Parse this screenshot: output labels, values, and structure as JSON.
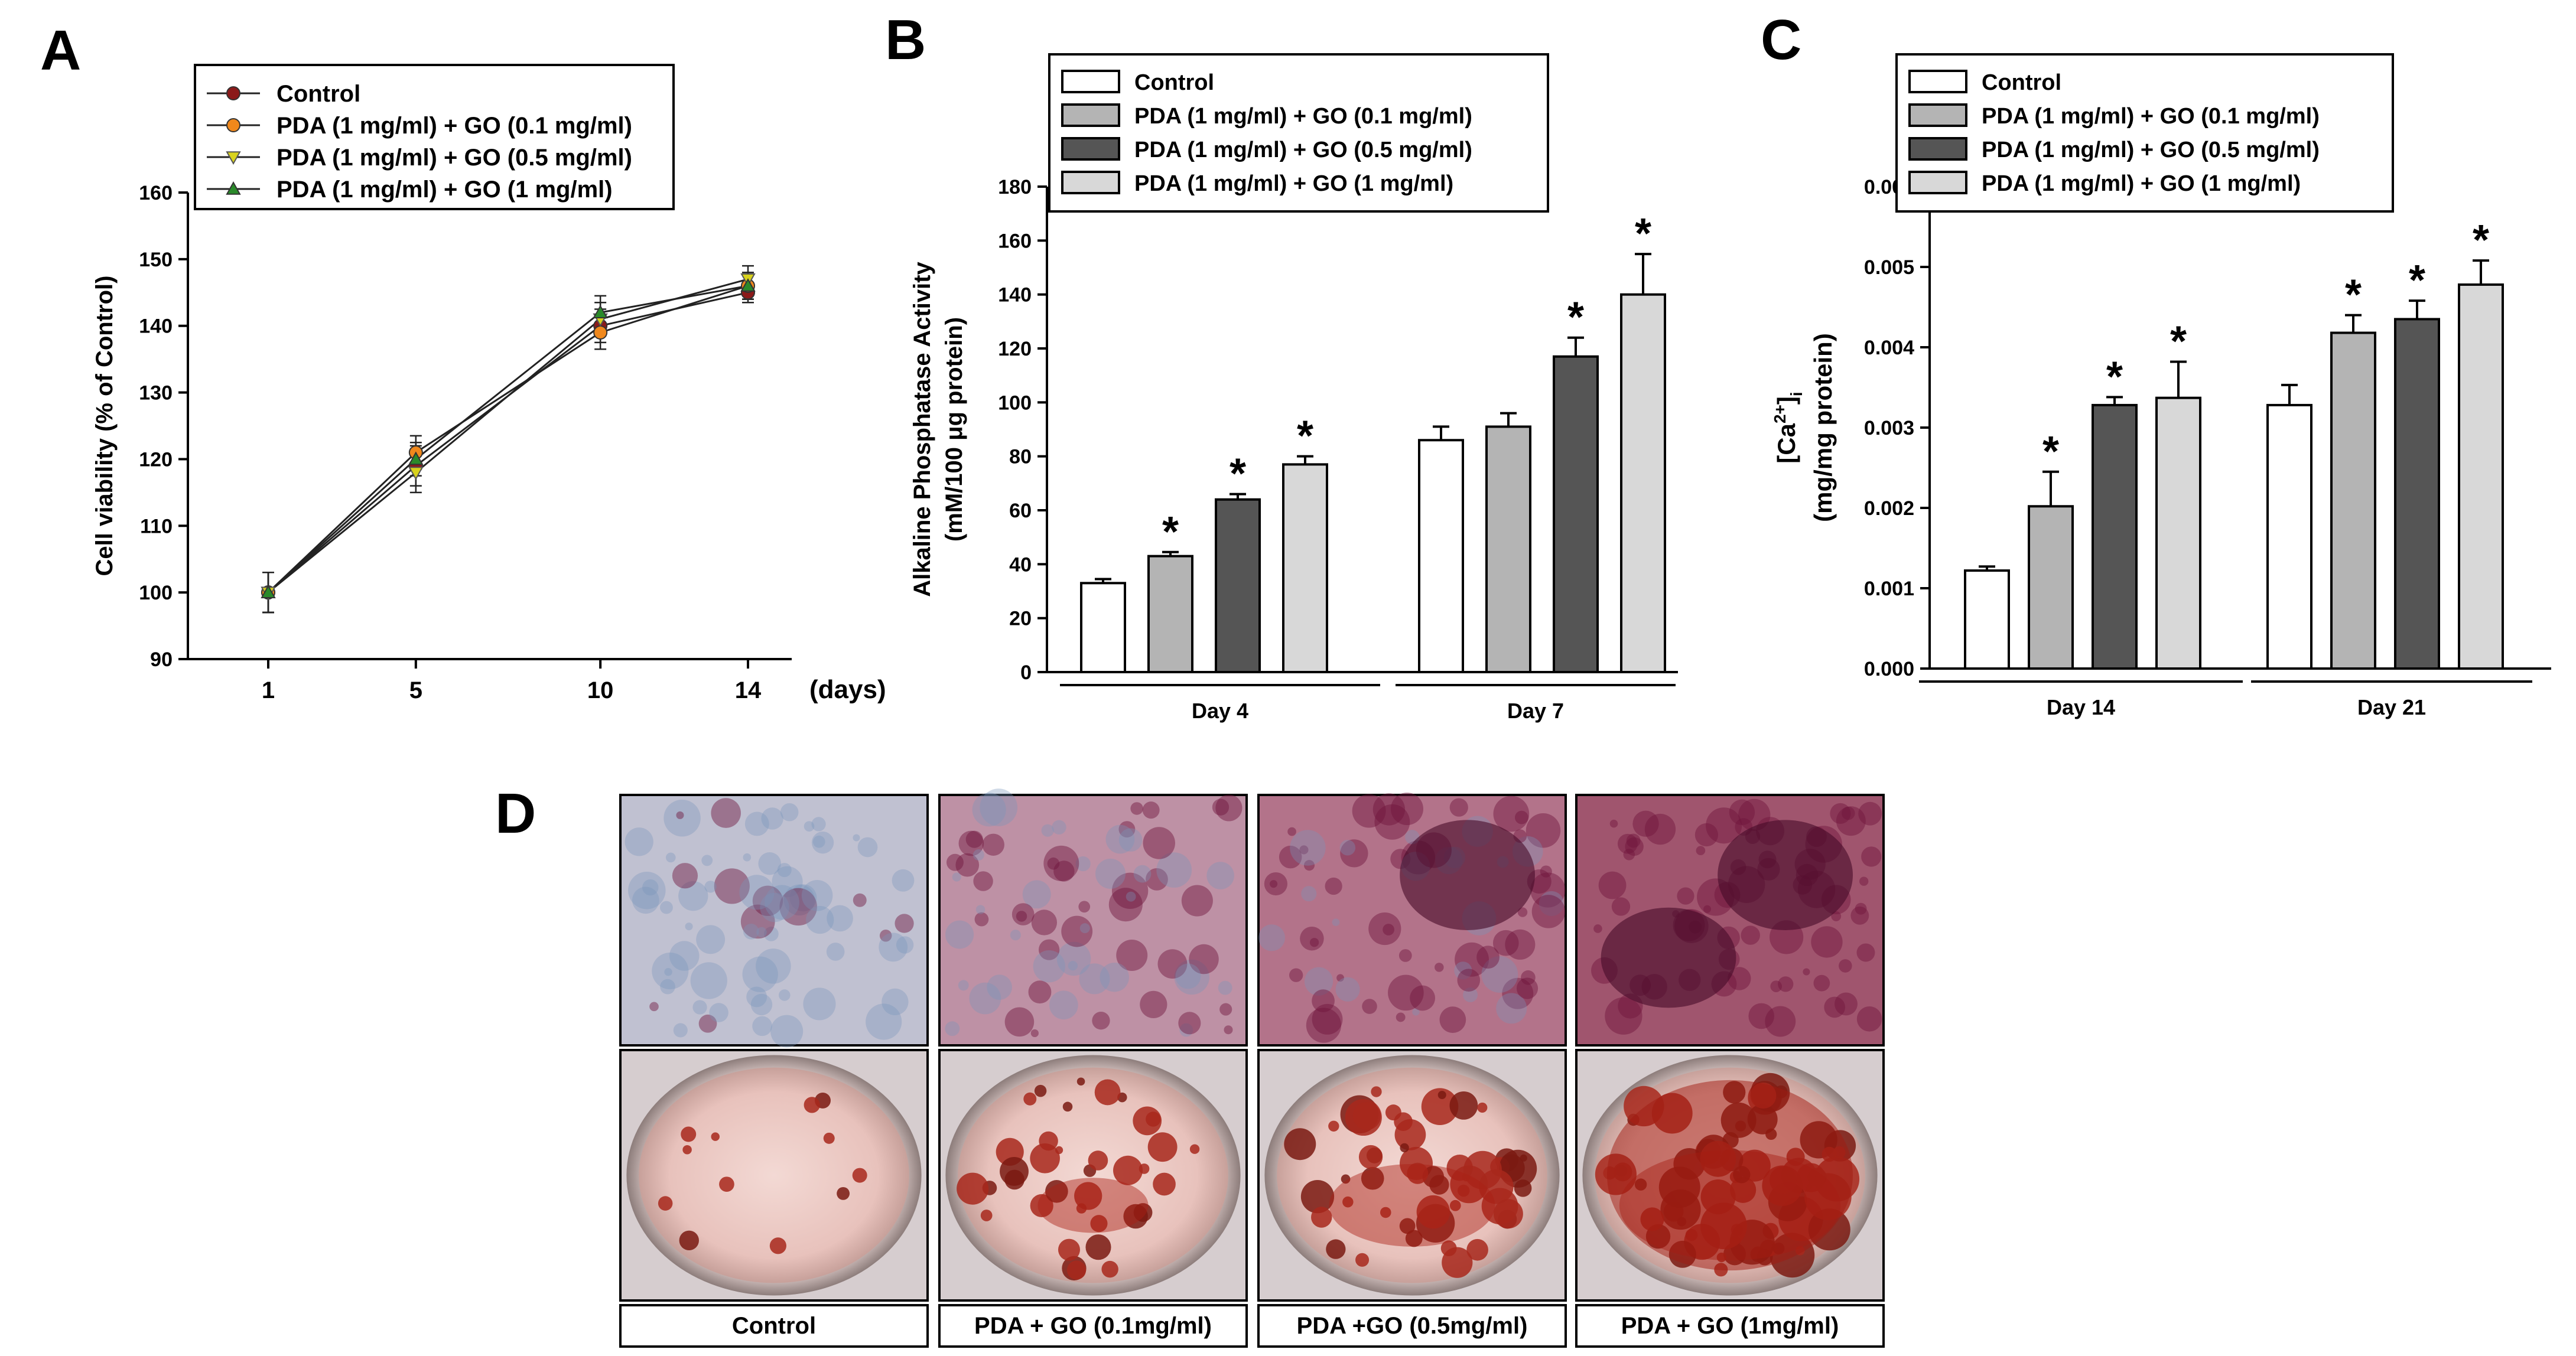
{
  "panels": {
    "A": {
      "letter": "A"
    },
    "B": {
      "letter": "B"
    },
    "C": {
      "letter": "C"
    },
    "D": {
      "letter": "D"
    }
  },
  "chart_data": [
    {
      "panel": "A",
      "type": "line",
      "title": "",
      "xlabel": "(days)",
      "ylabel": "Cell viability (% of Control)",
      "x": [
        1,
        5,
        10,
        14
      ],
      "xticks": [
        "1",
        "5",
        "10",
        "14"
      ],
      "ylim": [
        90,
        160
      ],
      "yticks": [
        90,
        100,
        110,
        120,
        130,
        140,
        150,
        160
      ],
      "legend_position": "top-left",
      "series": [
        {
          "name": "Control",
          "values": [
            100,
            119,
            140,
            145
          ],
          "errors": [
            3,
            3,
            2.5,
            1.5
          ],
          "color": "#8b1a1a",
          "marker": "circle"
        },
        {
          "name": "PDA (1 mg/ml) + GO (0.1 mg/ml)",
          "values": [
            100,
            121,
            139,
            146
          ],
          "errors": [
            3,
            2.5,
            2.5,
            2
          ],
          "color": "#f0881c",
          "marker": "circle"
        },
        {
          "name": "PDA (1 mg/ml) + GO (0.5 mg/ml)",
          "values": [
            100,
            118,
            141,
            147
          ],
          "errors": [
            3,
            3,
            2.5,
            2
          ],
          "color": "#d8d21c",
          "marker": "triangle-down"
        },
        {
          "name": "PDA (1 mg/ml) + GO (1 mg/ml)",
          "values": [
            100,
            120,
            142,
            146
          ],
          "errors": [
            3,
            2.5,
            2.5,
            2
          ],
          "color": "#2a8a2a",
          "marker": "triangle-up"
        }
      ]
    },
    {
      "panel": "B",
      "type": "bar",
      "title": "",
      "xlabel": "",
      "ylabel_lines": [
        "Alkaline Phosphatase Activity",
        "(mM/100 μg protein)"
      ],
      "categories": [
        "Day 4",
        "Day 7"
      ],
      "ylim": [
        0,
        180
      ],
      "yticks": [
        0,
        20,
        40,
        60,
        80,
        100,
        120,
        140,
        160,
        180
      ],
      "legend_position": "top",
      "series": [
        {
          "name": "Control",
          "values": [
            33,
            86
          ],
          "errors": [
            1.5,
            5
          ],
          "stars": [
            false,
            false
          ],
          "color": "#ffffff"
        },
        {
          "name": "PDA (1 mg/ml) + GO (0.1 mg/ml)",
          "values": [
            43,
            91
          ],
          "errors": [
            1.5,
            5
          ],
          "stars": [
            true,
            false
          ],
          "color": "#b4b4b4"
        },
        {
          "name": "PDA (1 mg/ml) + GO (0.5 mg/ml)",
          "values": [
            64,
            117
          ],
          "errors": [
            2,
            7
          ],
          "stars": [
            true,
            true
          ],
          "color": "#555555"
        },
        {
          "name": "PDA (1 mg/ml) + GO (1 mg/ml)",
          "values": [
            77,
            140
          ],
          "errors": [
            3,
            15
          ],
          "stars": [
            true,
            true
          ],
          "color": "#d8d8d8"
        }
      ]
    },
    {
      "panel": "C",
      "type": "bar",
      "title": "",
      "xlabel": "",
      "ylabel_main": "[Ca",
      "ylabel_sup": "2+",
      "ylabel_close": "]",
      "ylabel_sub": "i",
      "ylabel_line2": "(mg/mg protein)",
      "categories": [
        "Day 14",
        "Day 21"
      ],
      "ylim": [
        0,
        0.006
      ],
      "yticks": [
        "0.000",
        "0.001",
        "0.002",
        "0.003",
        "0.004",
        "0.005",
        "0.006"
      ],
      "legend_position": "top",
      "series": [
        {
          "name": "Control",
          "values": [
            0.00122,
            0.00328
          ],
          "errors": [
            5e-05,
            0.00025
          ],
          "stars": [
            false,
            false
          ],
          "color": "#ffffff"
        },
        {
          "name": "PDA (1 mg/ml) + GO (0.1 mg/ml)",
          "values": [
            0.00202,
            0.00418
          ],
          "errors": [
            0.00043,
            0.00022
          ],
          "stars": [
            true,
            true
          ],
          "color": "#b4b4b4"
        },
        {
          "name": "PDA (1 mg/ml) + GO (0.5 mg/ml)",
          "values": [
            0.00328,
            0.00435
          ],
          "errors": [
            0.0001,
            0.00023
          ],
          "stars": [
            true,
            true
          ],
          "color": "#555555"
        },
        {
          "name": "PDA (1 mg/ml) + GO (1 mg/ml)",
          "values": [
            0.00337,
            0.00478
          ],
          "errors": [
            0.00045,
            0.0003
          ],
          "stars": [
            true,
            true
          ],
          "color": "#d8d8d8"
        }
      ]
    }
  ],
  "panel_D": {
    "labels": [
      "Control",
      "PDA + GO (0.1mg/ml)",
      "PDA +GO (0.5mg/ml)",
      "PDA + GO (1mg/ml)"
    ],
    "stain_levels": [
      0.1,
      0.5,
      0.75,
      1.0
    ]
  },
  "star_symbol": "*"
}
